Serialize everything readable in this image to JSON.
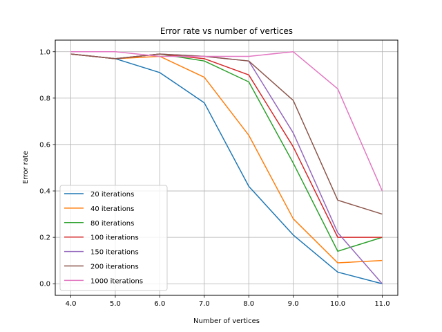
{
  "chart_data": {
    "type": "line",
    "title": "Error rate vs number of vertices",
    "xlabel": "Number of vertices",
    "ylabel": "Error rate",
    "x": [
      4.0,
      5.0,
      6.0,
      7.0,
      8.0,
      9.0,
      10.0,
      11.0
    ],
    "x_tick_labels": [
      "4.0",
      "5.0",
      "6.0",
      "7.0",
      "8.0",
      "9.0",
      "10.0",
      "11.0"
    ],
    "y_ticks": [
      0.0,
      0.2,
      0.4,
      0.6,
      0.8,
      1.0
    ],
    "y_tick_labels": [
      "0.0",
      "0.2",
      "0.4",
      "0.6",
      "0.8",
      "1.0"
    ],
    "xlim": [
      3.65,
      11.35
    ],
    "ylim": [
      -0.05,
      1.05
    ],
    "grid": true,
    "legend_position": "lower-left",
    "series": [
      {
        "name": "20 iterations",
        "color": "#1f77b4",
        "values": [
          0.99,
          0.97,
          0.91,
          0.78,
          0.42,
          0.21,
          0.05,
          0.0
        ]
      },
      {
        "name": "40 iterations",
        "color": "#ff7f0e",
        "values": [
          0.99,
          0.97,
          0.98,
          0.89,
          0.64,
          0.28,
          0.09,
          0.1
        ]
      },
      {
        "name": "80 iterations",
        "color": "#2ca02c",
        "values": [
          0.99,
          0.97,
          0.99,
          0.96,
          0.87,
          0.52,
          0.14,
          0.2
        ]
      },
      {
        "name": "100 iterations",
        "color": "#d62728",
        "values": [
          0.99,
          0.97,
          0.99,
          0.97,
          0.9,
          0.59,
          0.2,
          0.2
        ]
      },
      {
        "name": "150 iterations",
        "color": "#9467bd",
        "values": [
          0.99,
          0.97,
          0.99,
          0.98,
          0.96,
          0.65,
          0.22,
          0.0
        ]
      },
      {
        "name": "200 iterations",
        "color": "#8c564b",
        "values": [
          0.99,
          0.97,
          0.99,
          0.98,
          0.96,
          0.79,
          0.36,
          0.3
        ]
      },
      {
        "name": "1000 iterations",
        "color": "#e377c2",
        "values": [
          1.0,
          1.0,
          0.98,
          0.98,
          0.98,
          1.0,
          0.84,
          0.4
        ]
      }
    ]
  }
}
